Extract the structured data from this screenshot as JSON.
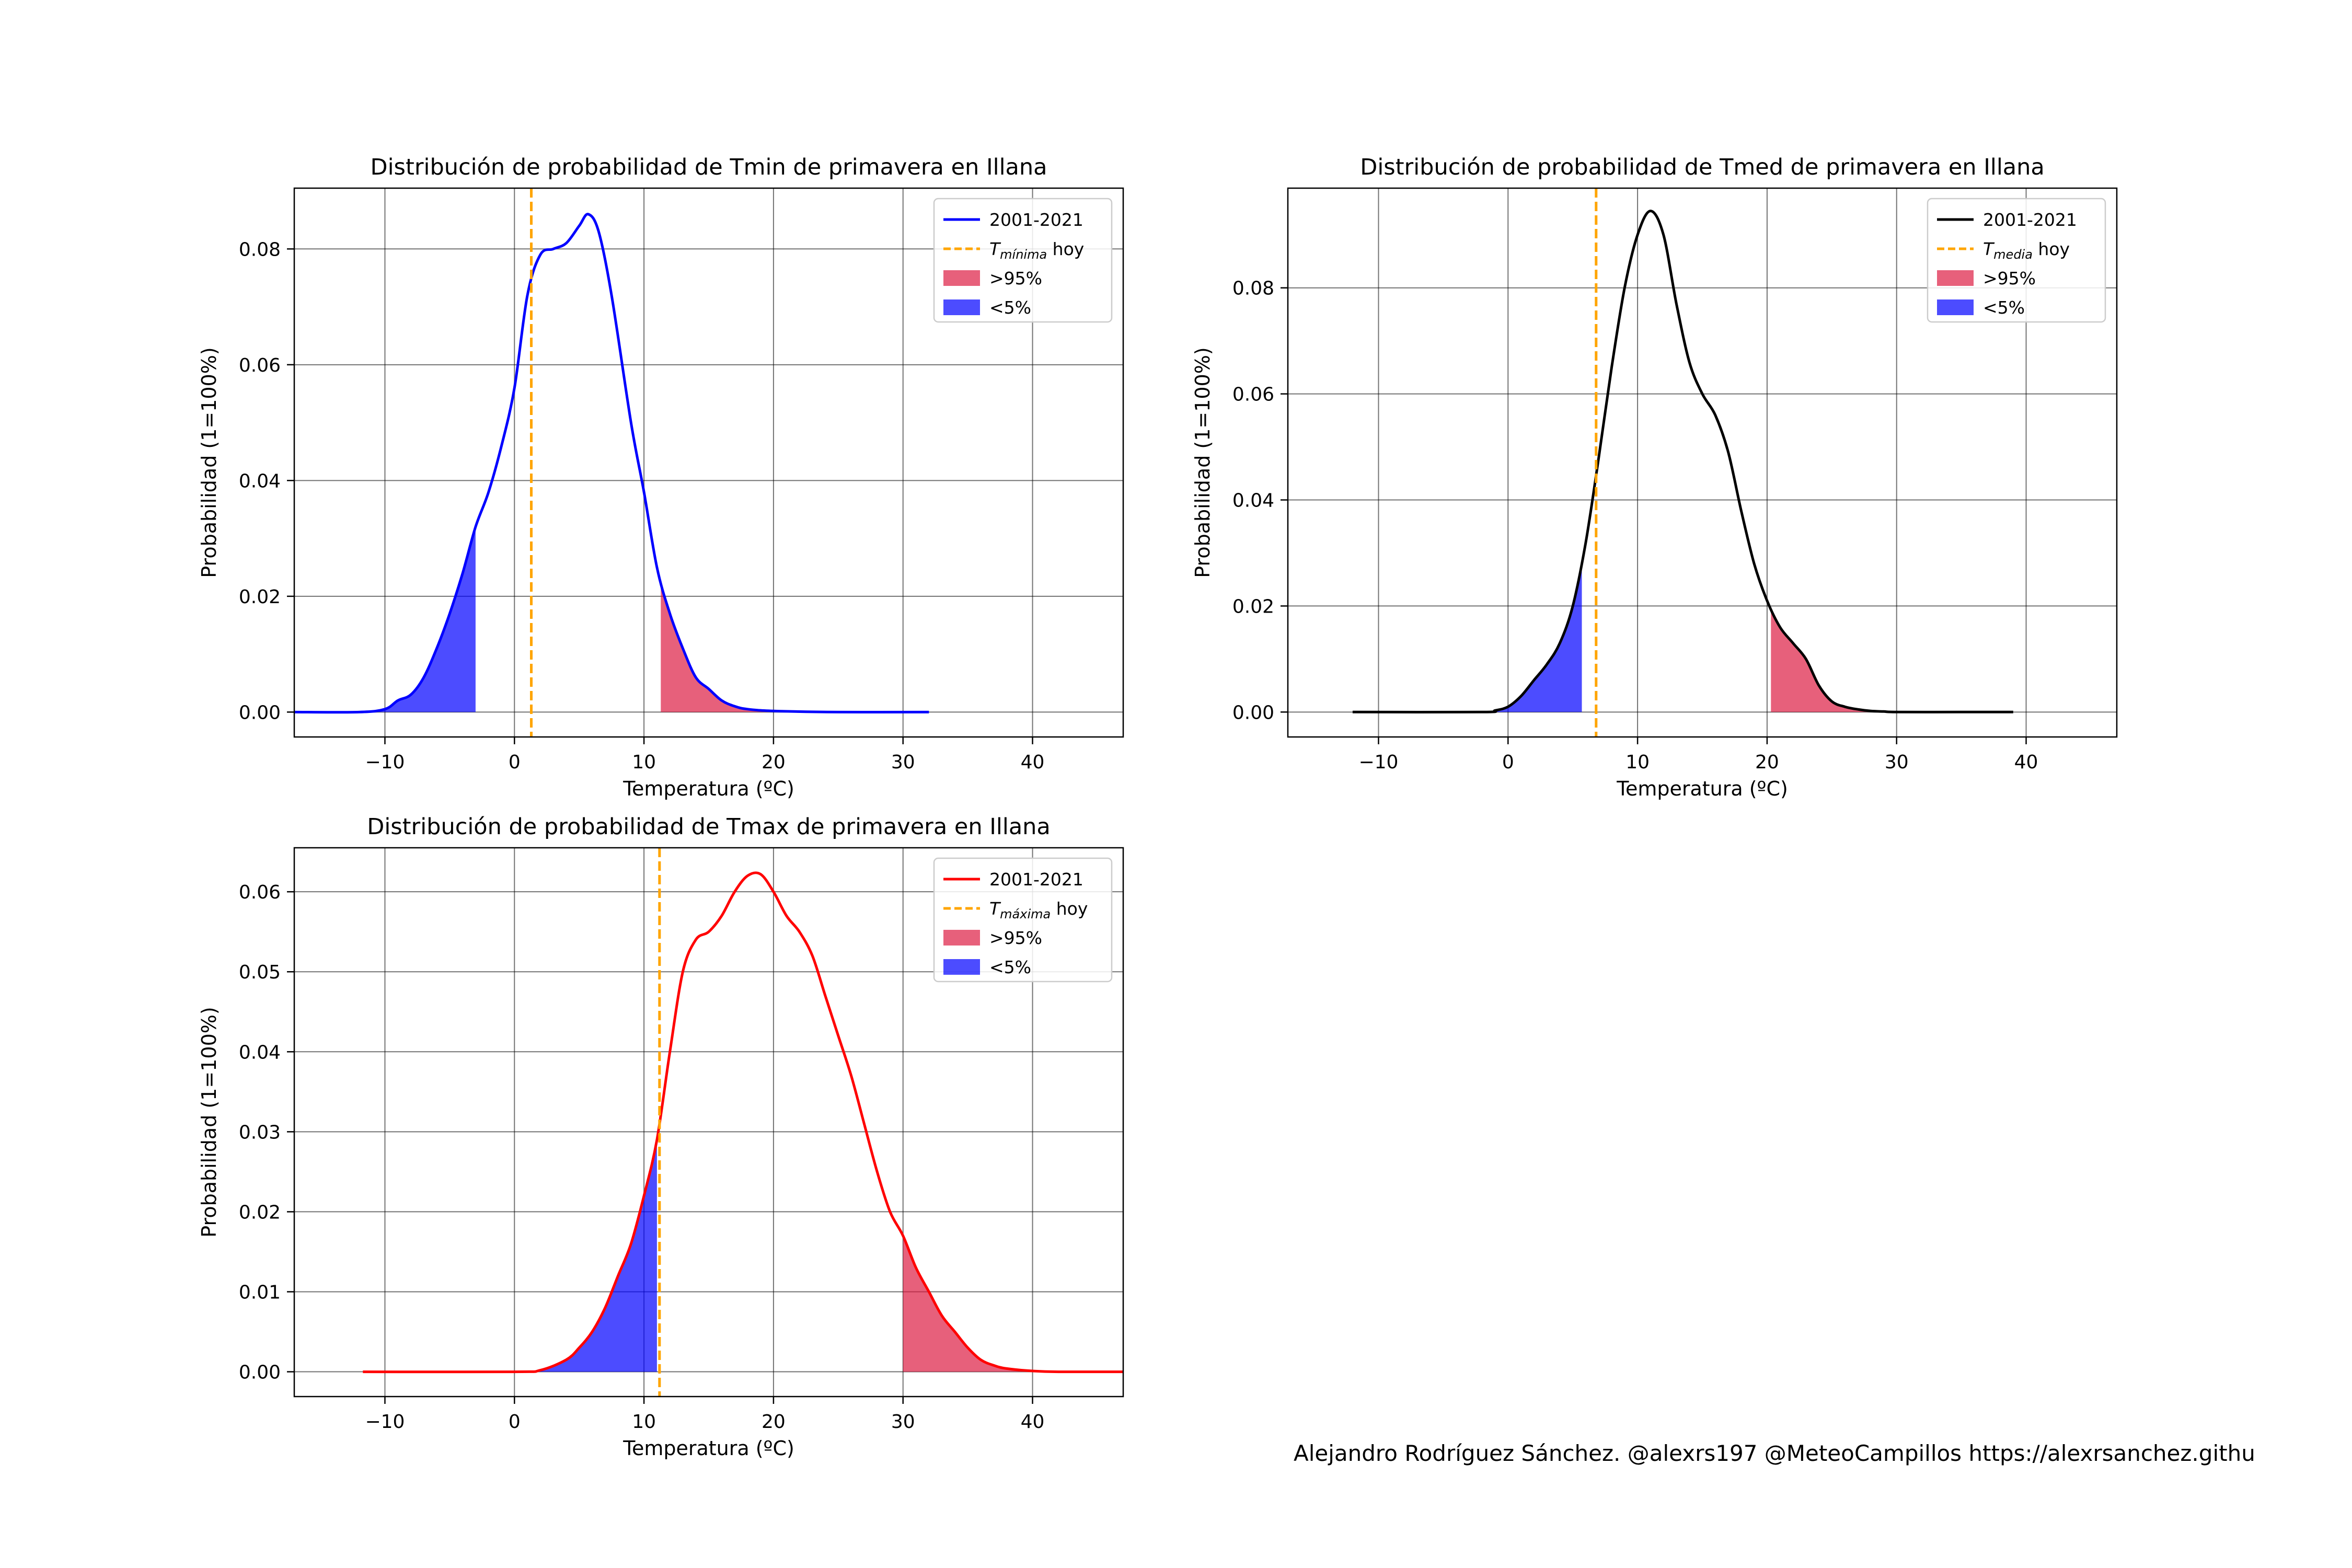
{
  "footer": "Alejandro Rodríguez Sánchez. @alexrs197 @MeteoCampillos   https://alexrsanchez.githu",
  "colors": {
    "high_fill": "#dc143c",
    "low_fill": "#0000ff",
    "today_line": "#ffa500",
    "grid": "#000000"
  },
  "chart_data": [
    {
      "type": "line",
      "title": "Distribución de probabilidad de Tmin de primavera en Illana",
      "xlabel": "Temperatura (ºC)",
      "ylabel": "Probabilidad (1=100%)",
      "xlim": [
        -17,
        47
      ],
      "ylim": [
        -0.0043,
        0.0905
      ],
      "xticks": [
        "−10",
        "0",
        "10",
        "20",
        "30",
        "40"
      ],
      "xtick_values": [
        -10,
        0,
        10,
        20,
        30,
        40
      ],
      "yticks": [
        "0.00",
        "0.02",
        "0.04",
        "0.06",
        "0.08"
      ],
      "ytick_values": [
        0,
        0.02,
        0.04,
        0.06,
        0.08
      ],
      "grid": true,
      "legend_placement": "upper right",
      "series": [
        {
          "name": "2001-2021",
          "color": "#0000ff",
          "x": [
            -17,
            -12,
            -10,
            -9,
            -8,
            -7,
            -6,
            -5,
            -4,
            -3,
            -2,
            -1,
            0,
            1,
            2,
            3,
            4,
            5,
            5.7,
            6.5,
            7.5,
            9,
            10,
            11,
            12,
            13,
            14,
            15,
            16,
            17,
            18,
            20,
            25,
            32
          ],
          "y": [
            0,
            0,
            0.0005,
            0.002,
            0.003,
            0.006,
            0.011,
            0.017,
            0.024,
            0.032,
            0.038,
            0.046,
            0.056,
            0.072,
            0.079,
            0.08,
            0.081,
            0.084,
            0.086,
            0.083,
            0.072,
            0.05,
            0.038,
            0.025,
            0.017,
            0.011,
            0.006,
            0.004,
            0.002,
            0.001,
            0.0005,
            0.0002,
            0,
            0
          ]
        }
      ],
      "today": {
        "label_main": "T",
        "label_sub": "mínima",
        "label_end": " hoy",
        "x": 1.3
      },
      "high_95": {
        "label": ">95%",
        "from": 11.3
      },
      "low_5": {
        "label": "<5%",
        "to": -3
      }
    },
    {
      "type": "line",
      "title": "Distribución de probabilidad de Tmed de primavera en Illana",
      "xlabel": "Temperatura (ºC)",
      "ylabel": "Probabilidad (1=100%)",
      "xlim": [
        -17,
        47
      ],
      "ylim": [
        -0.0047,
        0.0988
      ],
      "xticks": [
        "−10",
        "0",
        "10",
        "20",
        "30",
        "40"
      ],
      "xtick_values": [
        -10,
        0,
        10,
        20,
        30,
        40
      ],
      "yticks": [
        "0.00",
        "0.02",
        "0.04",
        "0.06",
        "0.08"
      ],
      "ytick_values": [
        0,
        0.02,
        0.04,
        0.06,
        0.08
      ],
      "grid": true,
      "legend_placement": "upper right",
      "series": [
        {
          "name": "2001-2021",
          "color": "#000000",
          "x": [
            -12,
            -2,
            -1,
            0,
            1,
            2,
            3,
            4,
            5,
            6,
            7,
            8,
            9,
            10,
            11,
            12,
            13,
            14,
            15,
            16,
            17,
            18,
            19,
            20,
            21,
            22,
            23,
            24,
            25,
            26,
            27,
            28,
            29,
            30,
            35,
            39
          ],
          "y": [
            0,
            0,
            0.0003,
            0.001,
            0.003,
            0.006,
            0.009,
            0.013,
            0.02,
            0.032,
            0.048,
            0.065,
            0.08,
            0.09,
            0.0945,
            0.09,
            0.077,
            0.066,
            0.06,
            0.056,
            0.049,
            0.038,
            0.028,
            0.021,
            0.016,
            0.013,
            0.01,
            0.005,
            0.002,
            0.001,
            0.0005,
            0.0002,
            0.0001,
            0,
            0,
            0
          ]
        }
      ],
      "today": {
        "label_main": "T",
        "label_sub": "media",
        "label_end": " hoy",
        "x": 6.8
      },
      "high_95": {
        "label": ">95%",
        "from": 20.3
      },
      "low_5": {
        "label": "<5%",
        "to": 5.7
      }
    },
    {
      "type": "line",
      "title": "Distribución de probabilidad de Tmax de primavera en Illana",
      "xlabel": "Temperatura (ºC)",
      "ylabel": "Probabilidad (1=100%)",
      "xlim": [
        -17,
        47
      ],
      "ylim": [
        -0.0031,
        0.0655
      ],
      "xticks": [
        "−10",
        "0",
        "10",
        "20",
        "30",
        "40"
      ],
      "xtick_values": [
        -10,
        0,
        10,
        20,
        30,
        40
      ],
      "yticks": [
        "0.00",
        "0.01",
        "0.02",
        "0.03",
        "0.04",
        "0.05",
        "0.06"
      ],
      "ytick_values": [
        0,
        0.01,
        0.02,
        0.03,
        0.04,
        0.05,
        0.06
      ],
      "grid": true,
      "legend_placement": "upper right",
      "series": [
        {
          "name": "2001-2021",
          "color": "#ff0000",
          "x": [
            -11.7,
            0,
            2,
            4,
            5,
            6,
            7,
            8,
            9,
            10,
            11,
            12,
            13,
            14,
            15,
            16,
            17,
            18,
            19,
            20,
            21,
            22,
            23,
            24,
            25,
            26,
            27,
            28,
            29,
            30,
            31,
            32,
            33,
            34,
            35,
            36,
            37,
            38,
            40,
            42,
            47
          ],
          "y": [
            0,
            0,
            0.0002,
            0.0015,
            0.003,
            0.005,
            0.008,
            0.012,
            0.016,
            0.022,
            0.029,
            0.04,
            0.05,
            0.054,
            0.055,
            0.057,
            0.06,
            0.062,
            0.0622,
            0.06,
            0.057,
            0.055,
            0.052,
            0.047,
            0.042,
            0.037,
            0.031,
            0.025,
            0.02,
            0.017,
            0.013,
            0.01,
            0.007,
            0.005,
            0.003,
            0.0015,
            0.0008,
            0.0004,
            0.0001,
            0,
            0
          ]
        }
      ],
      "today": {
        "label_main": "T",
        "label_sub": "máxima",
        "label_end": " hoy",
        "x": 11.2
      },
      "high_95": {
        "label": ">95%",
        "from": 30
      },
      "low_5": {
        "label": "<5%",
        "to": 11
      }
    }
  ]
}
